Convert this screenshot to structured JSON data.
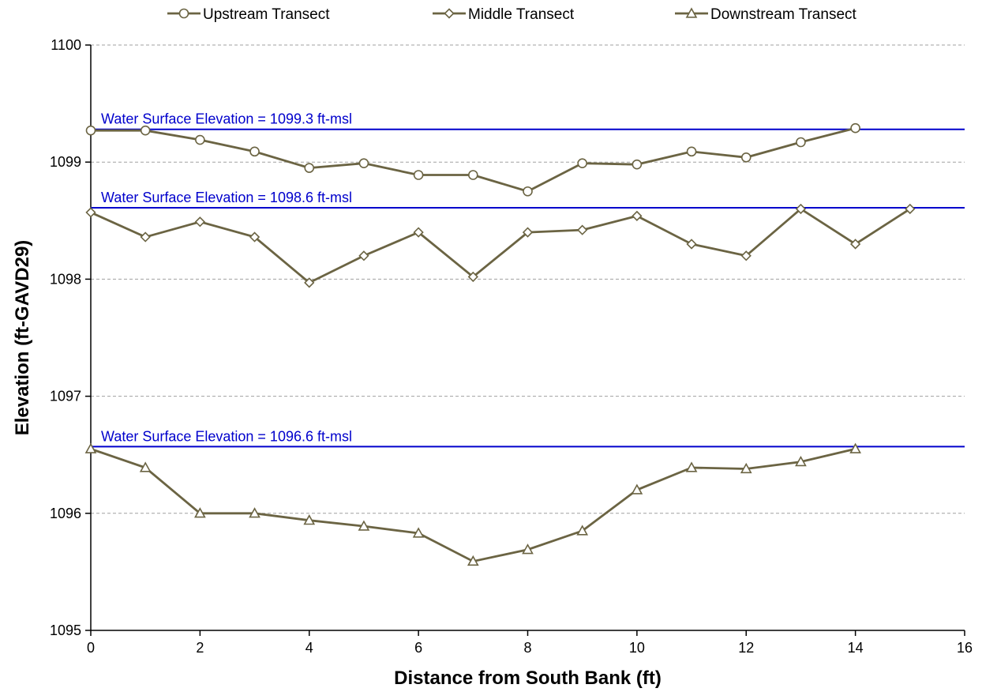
{
  "chart_data": {
    "type": "line",
    "xlabel": "Distance from South Bank (ft)",
    "ylabel": "Elevation (ft-GAVD29)",
    "xlim": [
      0,
      16
    ],
    "ylim": [
      1095,
      1100
    ],
    "x_ticks": [
      0,
      2,
      4,
      6,
      8,
      10,
      12,
      14,
      16
    ],
    "y_ticks": [
      1095,
      1096,
      1097,
      1098,
      1099,
      1100
    ],
    "grid": "horizontal dashed",
    "legend_position": "top",
    "series_color": "#6b6443",
    "reference_color": "#0000cc",
    "series": [
      {
        "name": "Upstream Transect",
        "marker": "circle",
        "x": [
          0,
          1,
          2,
          3,
          4,
          5,
          6,
          7,
          8,
          9,
          10,
          11,
          12,
          13,
          14
        ],
        "values": [
          1099.27,
          1099.27,
          1099.19,
          1099.09,
          1098.95,
          1098.99,
          1098.89,
          1098.89,
          1098.75,
          1098.99,
          1098.98,
          1099.09,
          1099.04,
          1099.17,
          1099.29
        ]
      },
      {
        "name": "Middle Transect",
        "marker": "diamond",
        "x": [
          0,
          1,
          2,
          3,
          4,
          5,
          6,
          7,
          8,
          9,
          10,
          11,
          12,
          13,
          14,
          15
        ],
        "values": [
          1098.57,
          1098.36,
          1098.49,
          1098.36,
          1097.97,
          1098.2,
          1098.4,
          1098.02,
          1098.4,
          1098.42,
          1098.54,
          1098.3,
          1098.2,
          1098.6,
          1098.3,
          1098.6
        ]
      },
      {
        "name": "Downstream Transect",
        "marker": "triangle",
        "x": [
          0,
          1,
          2,
          3,
          4,
          5,
          6,
          7,
          8,
          9,
          10,
          11,
          12,
          13,
          14
        ],
        "values": [
          1096.55,
          1096.39,
          1096.0,
          1096.0,
          1095.94,
          1095.89,
          1095.83,
          1095.59,
          1095.69,
          1095.85,
          1096.2,
          1096.39,
          1096.38,
          1096.44,
          1096.55
        ]
      }
    ],
    "reference_lines": [
      {
        "label": "Water Surface Elevation = 1099.3 ft-msl",
        "value": 1099.28
      },
      {
        "label": "Water Surface Elevation = 1098.6 ft-msl",
        "value": 1098.61
      },
      {
        "label": "Water Surface Elevation = 1096.6 ft-msl",
        "value": 1096.57
      }
    ]
  }
}
